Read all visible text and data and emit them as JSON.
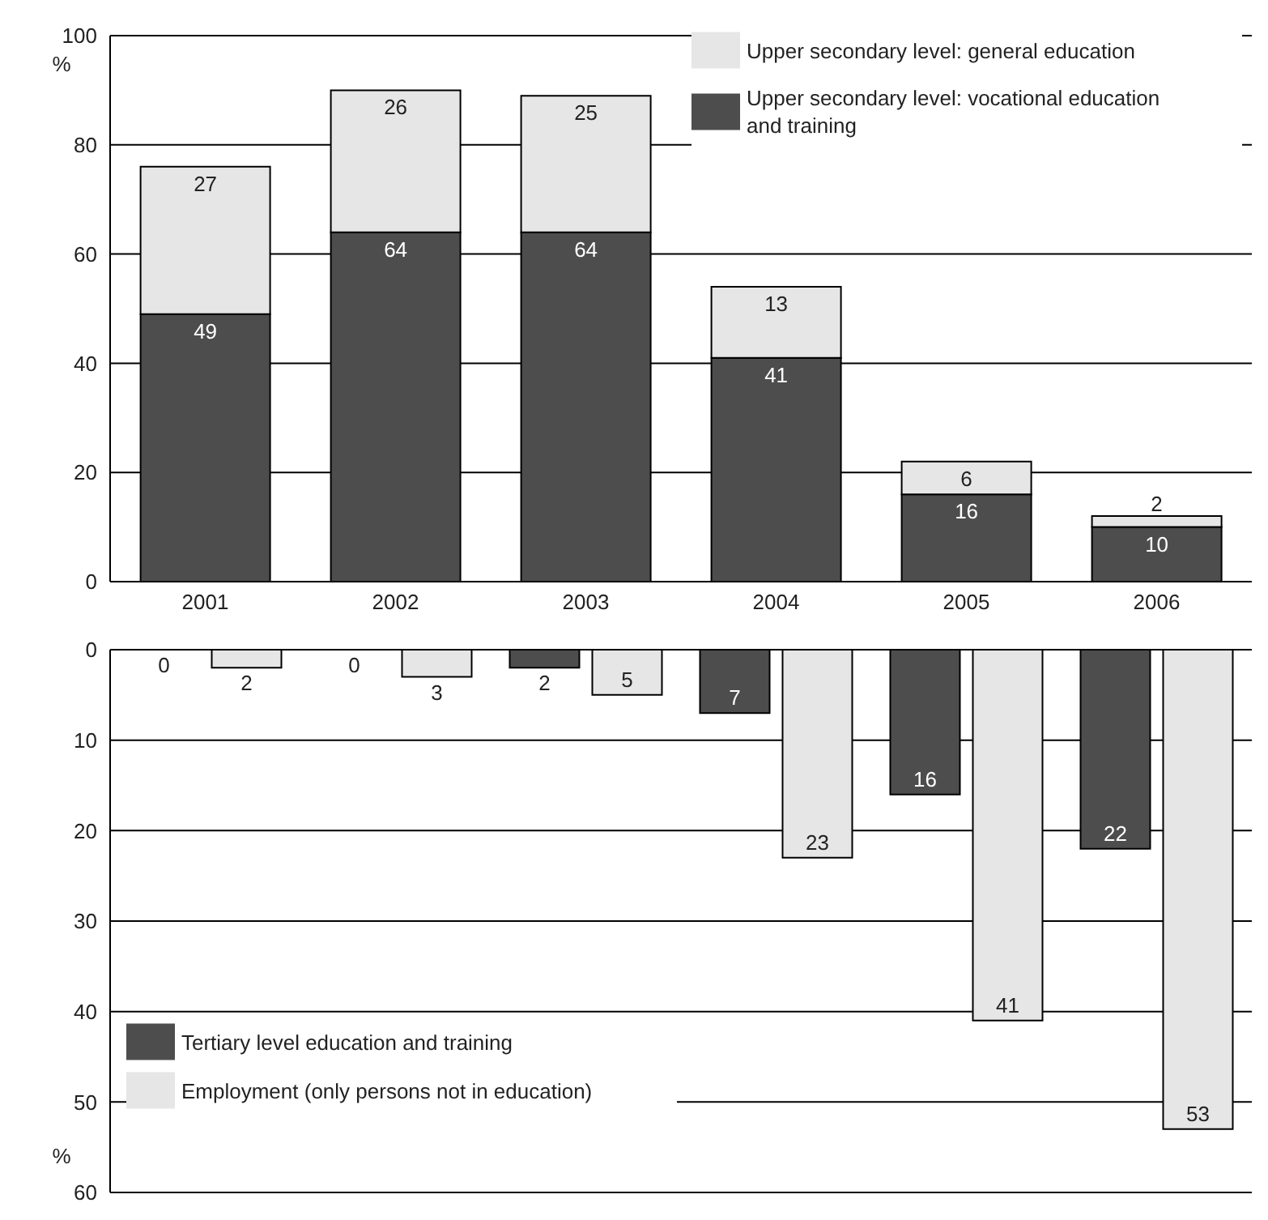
{
  "chart_data": [
    {
      "type": "bar",
      "stacked": true,
      "categories": [
        "2001",
        "2002",
        "2003",
        "2004",
        "2005",
        "2006"
      ],
      "ylabel": "%",
      "ylim": [
        0,
        100
      ],
      "yticks": [
        0,
        20,
        40,
        60,
        80,
        100
      ],
      "grid": "y",
      "legend": "top right",
      "data_labels": true,
      "series": [
        {
          "name": "Upper secondary level: vocational education and training",
          "color": "#4d4d4d",
          "values": [
            49,
            64,
            64,
            41,
            16,
            10
          ]
        },
        {
          "name": "Upper secondary level: general education",
          "color": "#e6e6e6",
          "values": [
            27,
            26,
            25,
            13,
            6,
            2
          ]
        }
      ]
    },
    {
      "type": "bar",
      "categories": [
        "2001",
        "2002",
        "2003",
        "2004",
        "2005",
        "2006"
      ],
      "ylabel": "%",
      "ylim": [
        60,
        0
      ],
      "yticks": [
        0,
        10,
        20,
        30,
        40,
        50,
        60
      ],
      "grid": "y",
      "legend": "bottom left",
      "data_labels": true,
      "tick_labels": "y",
      "series": [
        {
          "name": "Tertiary level education and training",
          "color": "#4d4d4d",
          "values": [
            0,
            0,
            2,
            7,
            16,
            22
          ]
        },
        {
          "name": "Employment (only persons not in education)",
          "color": "#e6e6e6",
          "values": [
            2,
            3,
            5,
            23,
            41,
            53
          ]
        }
      ]
    }
  ]
}
